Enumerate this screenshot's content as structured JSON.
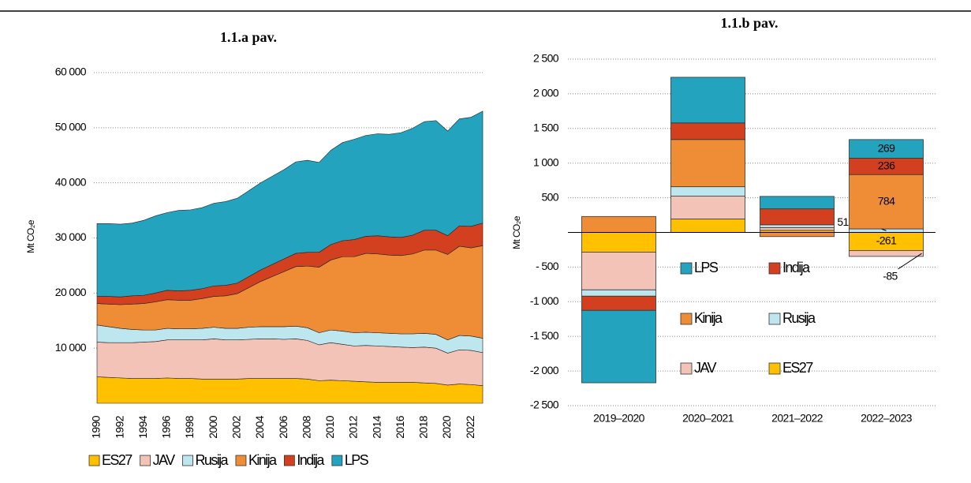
{
  "chart_data": [
    {
      "type": "area",
      "stacked": true,
      "title": "1.1.a pav.",
      "y_label": "Mt CO₂e",
      "x": [
        1990,
        1991,
        1992,
        1993,
        1994,
        1995,
        1996,
        1997,
        1998,
        1999,
        2000,
        2001,
        2002,
        2003,
        2004,
        2005,
        2006,
        2007,
        2008,
        2009,
        2010,
        2011,
        2012,
        2013,
        2014,
        2015,
        2016,
        2017,
        2018,
        2019,
        2020,
        2021,
        2022,
        2023
      ],
      "xlim": [
        1990,
        2023
      ],
      "xticks": [
        1990,
        1992,
        1994,
        1996,
        1998,
        2000,
        2002,
        2004,
        2006,
        2008,
        2010,
        2012,
        2014,
        2016,
        2018,
        2020,
        2022
      ],
      "ylim": [
        0,
        60000
      ],
      "yticks": [
        {
          "value": 10000,
          "label": "10 000"
        },
        {
          "value": 20000,
          "label": "20 000"
        },
        {
          "value": 30000,
          "label": "30 000"
        },
        {
          "value": 40000,
          "label": "40 000"
        },
        {
          "value": 50000,
          "label": "50 000"
        },
        {
          "value": 60000,
          "label": "60 000"
        }
      ],
      "grid": true,
      "legend": "bottom",
      "series": [
        {
          "name": "ES27",
          "color": "#FFC000",
          "values": [
            4800,
            4700,
            4600,
            4500,
            4500,
            4500,
            4600,
            4500,
            4500,
            4400,
            4400,
            4400,
            4400,
            4500,
            4500,
            4500,
            4500,
            4500,
            4400,
            4100,
            4200,
            4100,
            4000,
            3900,
            3800,
            3800,
            3800,
            3800,
            3700,
            3600,
            3300,
            3500,
            3400,
            3200
          ]
        },
        {
          "name": "JAV",
          "color": "#F4C3B8",
          "values": [
            6300,
            6300,
            6400,
            6500,
            6600,
            6700,
            6900,
            7000,
            7000,
            7100,
            7300,
            7100,
            7100,
            7100,
            7200,
            7200,
            7100,
            7200,
            7000,
            6500,
            6800,
            6600,
            6400,
            6600,
            6600,
            6500,
            6400,
            6300,
            6500,
            6400,
            5800,
            6200,
            6200,
            6000
          ]
        },
        {
          "name": "Rusija",
          "color": "#BDE6EE",
          "values": [
            3100,
            2900,
            2600,
            2400,
            2200,
            2100,
            2100,
            2000,
            2000,
            2100,
            2100,
            2100,
            2100,
            2200,
            2200,
            2200,
            2300,
            2300,
            2300,
            2200,
            2300,
            2400,
            2400,
            2400,
            2400,
            2400,
            2400,
            2500,
            2500,
            2500,
            2400,
            2600,
            2600,
            2600
          ]
        },
        {
          "name": "Kinija",
          "color": "#EE8D35",
          "values": [
            3900,
            4100,
            4300,
            4600,
            4800,
            5100,
            5200,
            5200,
            5200,
            5400,
            5600,
            5900,
            6300,
            7200,
            8200,
            9100,
            10000,
            10800,
            11200,
            11900,
            12700,
            13500,
            13800,
            14300,
            14300,
            14200,
            14200,
            14500,
            15100,
            15300,
            15500,
            16200,
            16000,
            16800
          ]
        },
        {
          "name": "Indija",
          "color": "#D2401F",
          "values": [
            1300,
            1400,
            1400,
            1500,
            1500,
            1600,
            1700,
            1700,
            1800,
            1800,
            1900,
            1900,
            1900,
            2000,
            2100,
            2200,
            2300,
            2400,
            2500,
            2700,
            2800,
            2900,
            3100,
            3100,
            3300,
            3300,
            3300,
            3400,
            3600,
            3600,
            3400,
            3700,
            3900,
            4100
          ]
        },
        {
          "name": "LPS",
          "color": "#24A3BE",
          "values": [
            13200,
            13200,
            13200,
            13200,
            13600,
            14000,
            14100,
            14600,
            14600,
            14700,
            15000,
            15200,
            15400,
            15600,
            15800,
            16000,
            16200,
            16600,
            16700,
            16300,
            17100,
            17800,
            18200,
            18300,
            18500,
            18600,
            19000,
            19400,
            19700,
            19900,
            19000,
            19400,
            19800,
            20300
          ]
        }
      ]
    },
    {
      "type": "bar",
      "stacked": true,
      "title": "1.1.b pav.",
      "y_label": "Mt CO₂e",
      "categories": [
        "2019–2020",
        "2020–2021",
        "2021–2022",
        "2022–2023"
      ],
      "ylim": [
        -2500,
        2500
      ],
      "yticks": [
        {
          "value": -2500,
          "label": "-2 500"
        },
        {
          "value": -2000,
          "label": "-2 000"
        },
        {
          "value": -1500,
          "label": "-1 500"
        },
        {
          "value": -1000,
          "label": "-1 000"
        },
        {
          "value": -500,
          "label": "- 500"
        },
        500,
        {
          "value": 1000,
          "label": "1 000"
        },
        {
          "value": 1500,
          "label": "1 500"
        },
        {
          "value": 2000,
          "label": "2 000"
        },
        {
          "value": 2500,
          "label": "2 500"
        }
      ],
      "grid": true,
      "legend": "inside",
      "series": [
        {
          "name": "ES27",
          "color": "#FFC000",
          "values": [
            -284,
            193,
            30,
            -261
          ],
          "value_labels": [
            null,
            null,
            null,
            "-261"
          ]
        },
        {
          "name": "JAV",
          "color": "#F4C3B8",
          "values": [
            -545,
            330,
            40,
            -85
          ],
          "value_labels": [
            null,
            null,
            null,
            "-85"
          ]
        },
        {
          "name": "Rusija",
          "color": "#BDE6EE",
          "values": [
            -91,
            136,
            40,
            51
          ],
          "value_labels": [
            null,
            null,
            null,
            "51"
          ]
        },
        {
          "name": "Kinija",
          "color": "#EE8D35",
          "values": [
            230,
            682,
            -60,
            784
          ],
          "value_labels": [
            null,
            null,
            null,
            "784"
          ]
        },
        {
          "name": "Indija",
          "color": "#D2401F",
          "values": [
            -205,
            239,
            230,
            236
          ],
          "value_labels": [
            null,
            null,
            null,
            "236"
          ]
        },
        {
          "name": "LPS",
          "color": "#24A3BE",
          "values": [
            -1045,
            659,
            180,
            269
          ],
          "value_labels": [
            null,
            null,
            null,
            "269"
          ]
        }
      ]
    }
  ]
}
